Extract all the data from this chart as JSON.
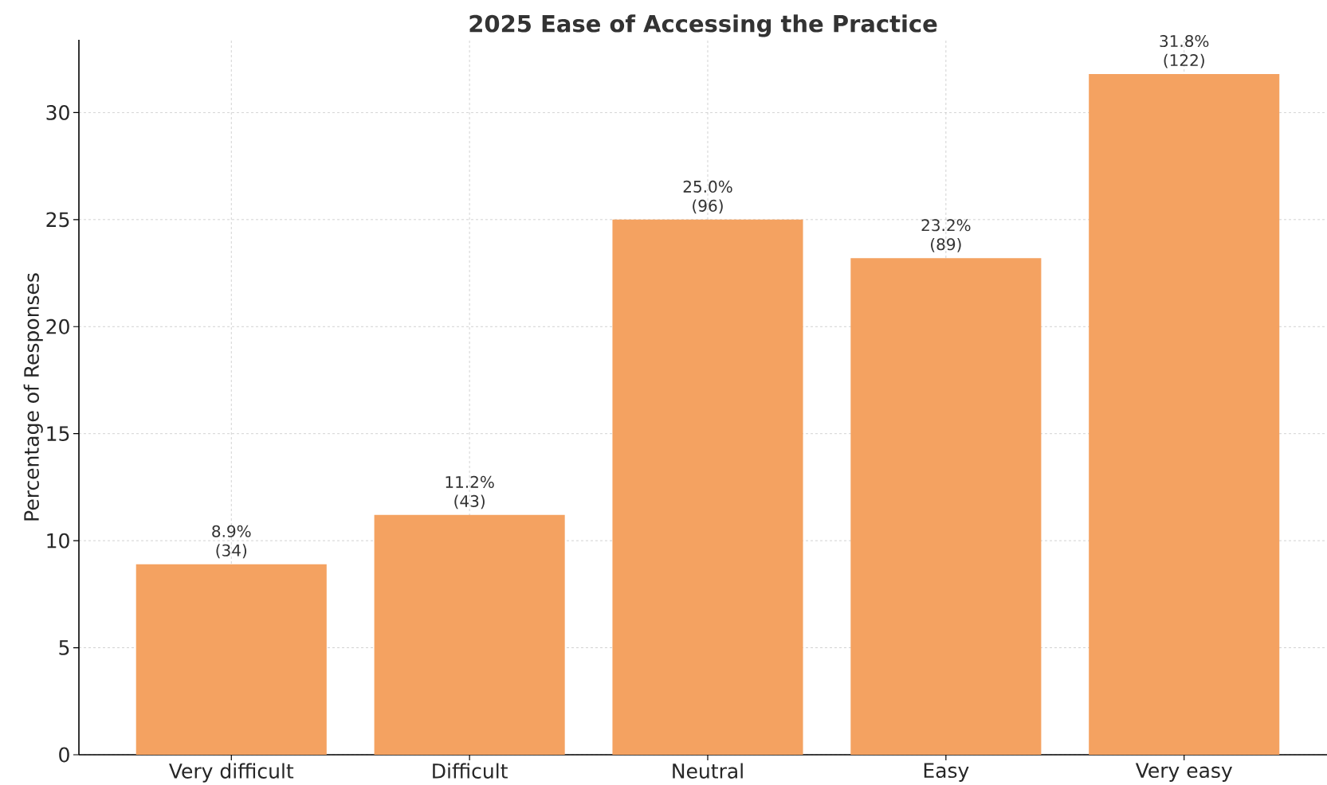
{
  "chart_data": {
    "type": "bar",
    "title": "2025 Ease of Accessing the Practice",
    "ylabel": "Percentage of Responses",
    "categories": [
      "Very difficult",
      "Difficult",
      "Neutral",
      "Easy",
      "Very easy"
    ],
    "values": [
      8.9,
      11.2,
      25.0,
      23.2,
      31.8
    ],
    "value_labels": [
      "8.9% (34)",
      "11.2% (43)",
      "25.0% (96)",
      "23.2% (89)",
      "31.8% (122)"
    ],
    "color": "#f4a261",
    "ylim": [
      0,
      33.4
    ],
    "yticks": [
      0,
      5,
      10,
      15,
      20,
      25,
      30
    ],
    "grid": true
  }
}
